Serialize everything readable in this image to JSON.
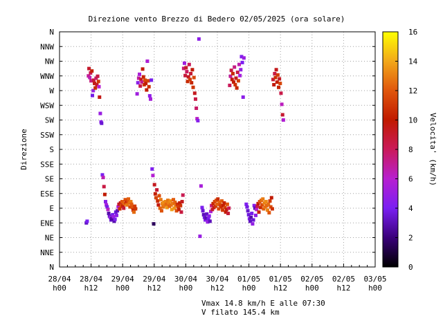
{
  "title": "Direzione vento Brezzo di Bedero 02/05/2025 (ora solare)",
  "footer": {
    "line1": "Vmax 14.8 km/h E alle 07:30",
    "line2": "V filato 145.4 km"
  },
  "chart_data": {
    "type": "scatter",
    "title": "Direzione vento Brezzo di Bedero 02/05/2025 (ora solare)",
    "ylabel": "Direzione",
    "colorbar_label": "Velocita' (km/h)",
    "colorbar_ticks": [
      0,
      2,
      4,
      6,
      8,
      10,
      12,
      14,
      16
    ],
    "colorbar_range": [
      0,
      16
    ],
    "grid": true,
    "xlim_hours": [
      0,
      120
    ],
    "x_ticks": [
      {
        "line1": "28/04",
        "line2": "h00"
      },
      {
        "line1": "28/04",
        "line2": "h12"
      },
      {
        "line1": "29/04",
        "line2": "h00"
      },
      {
        "line1": "29/04",
        "line2": "h12"
      },
      {
        "line1": "30/04",
        "line2": "h00"
      },
      {
        "line1": "30/04",
        "line2": "h12"
      },
      {
        "line1": "01/05",
        "line2": "h00"
      },
      {
        "line1": "01/05",
        "line2": "h12"
      },
      {
        "line1": "02/05",
        "line2": "h00"
      },
      {
        "line1": "02/05",
        "line2": "h12"
      },
      {
        "line1": "03/05",
        "line2": "h00"
      }
    ],
    "y_ticks": [
      "N",
      "NNE",
      "NE",
      "ENE",
      "E",
      "ESE",
      "SE",
      "SSE",
      "S",
      "SSW",
      "SW",
      "WSW",
      "W",
      "WNW",
      "NW",
      "NNW",
      "N"
    ],
    "points": [
      [
        10.2,
        67.5,
        3.2
      ],
      [
        10.5,
        70,
        4.0
      ],
      [
        11.0,
        292.5,
        7.0
      ],
      [
        11.2,
        303.75,
        9.0
      ],
      [
        11.5,
        290,
        6.5
      ],
      [
        11.8,
        297,
        8.2
      ],
      [
        12.0,
        285,
        7.4
      ],
      [
        12.3,
        300,
        10.2
      ],
      [
        12.5,
        262.5,
        3.8
      ],
      [
        12.8,
        270,
        5.0
      ],
      [
        13.0,
        286,
        8.8
      ],
      [
        13.3,
        281,
        9.6
      ],
      [
        13.6,
        274,
        10.5
      ],
      [
        13.9,
        289,
        7.8
      ],
      [
        14.2,
        279,
        9.2
      ],
      [
        14.5,
        292,
        8.5
      ],
      [
        14.8,
        284,
        11.0
      ],
      [
        15.0,
        276,
        6.0
      ],
      [
        15.2,
        260,
        9.5
      ],
      [
        15.5,
        235,
        5.0
      ],
      [
        15.8,
        222,
        4.5
      ],
      [
        16.0,
        220,
        3.5
      ],
      [
        16.3,
        141,
        4.0
      ],
      [
        16.6,
        137,
        6.5
      ],
      [
        16.9,
        123,
        8.5
      ],
      [
        17.2,
        111,
        10.0
      ],
      [
        17.5,
        100,
        4.5
      ],
      [
        17.8,
        95,
        5.5
      ],
      [
        18.1,
        92,
        3.8
      ],
      [
        18.4,
        88,
        6.2
      ],
      [
        18.7,
        82,
        2.8
      ],
      [
        19.0,
        78,
        3.2
      ],
      [
        19.3,
        76,
        4.8
      ],
      [
        19.6,
        72,
        3.4
      ],
      [
        19.9,
        74,
        2.6
      ],
      [
        20.2,
        80,
        3.9
      ],
      [
        20.5,
        77,
        5.1
      ],
      [
        20.8,
        70,
        2.9
      ],
      [
        21.1,
        73,
        4.2
      ],
      [
        21.4,
        84,
        3.6
      ],
      [
        21.7,
        79,
        4.6
      ],
      [
        22.0,
        86,
        3.1
      ],
      [
        22.3,
        92,
        5.8
      ],
      [
        22.6,
        96,
        9.0
      ],
      [
        22.9,
        89,
        10.8
      ],
      [
        23.2,
        98,
        9.6
      ],
      [
        23.5,
        94,
        11.5
      ],
      [
        23.8,
        100,
        12.0
      ],
      [
        24.1,
        93,
        10.2
      ],
      [
        24.4,
        90,
        8.8
      ],
      [
        24.7,
        97,
        12.4
      ],
      [
        25.0,
        103,
        11.8
      ],
      [
        25.3,
        99,
        10.6
      ],
      [
        25.6,
        95,
        12.8
      ],
      [
        25.9,
        101,
        11.2
      ],
      [
        26.2,
        104,
        12.2
      ],
      [
        26.5,
        98,
        12.6
      ],
      [
        26.8,
        92,
        11.4
      ],
      [
        27.1,
        100,
        12.9
      ],
      [
        27.4,
        96,
        12.1
      ],
      [
        27.7,
        91,
        11.9
      ],
      [
        28.0,
        87,
        10.4
      ],
      [
        28.3,
        84,
        12.5
      ],
      [
        28.6,
        93,
        11.1
      ],
      [
        28.9,
        89,
        10.9
      ],
      [
        29.5,
        265,
        5.2
      ],
      [
        29.8,
        282,
        4.6
      ],
      [
        30.1,
        289,
        6.8
      ],
      [
        30.4,
        295,
        5.6
      ],
      [
        30.7,
        277,
        8.4
      ],
      [
        31.0,
        287,
        9.4
      ],
      [
        31.3,
        283,
        7.2
      ],
      [
        31.6,
        303,
        9.8
      ],
      [
        31.9,
        291,
        10.3
      ],
      [
        32.2,
        279,
        10.9
      ],
      [
        32.5,
        286,
        11.6
      ],
      [
        32.8,
        281,
        9.9
      ],
      [
        33.1,
        271,
        10.1
      ],
      [
        33.4,
        315,
        5.7
      ],
      [
        33.7,
        285,
        11.3
      ],
      [
        34.0,
        276,
        10.7
      ],
      [
        34.3,
        262,
        4.7
      ],
      [
        34.6,
        257,
        5.4
      ],
      [
        34.9,
        286,
        3.9
      ],
      [
        35.2,
        150,
        4.2
      ],
      [
        35.5,
        140,
        5.9
      ],
      [
        35.8,
        66,
        1.5
      ],
      [
        36.1,
        126,
        9.3
      ],
      [
        36.4,
        112,
        10.1
      ],
      [
        36.7,
        106,
        11.4
      ],
      [
        37.0,
        118,
        8.9
      ],
      [
        37.3,
        101,
        10.6
      ],
      [
        37.6,
        95,
        9.7
      ],
      [
        37.9,
        109,
        11.7
      ],
      [
        38.2,
        90,
        12.3
      ],
      [
        38.5,
        103,
        12.8
      ],
      [
        38.8,
        86,
        11.9
      ],
      [
        39.1,
        97,
        13.1
      ],
      [
        39.4,
        92,
        12.6
      ],
      [
        39.7,
        99,
        13.4
      ],
      [
        40.0,
        94,
        12.9
      ],
      [
        40.3,
        100,
        13.2
      ],
      [
        40.6,
        96,
        12.4
      ],
      [
        40.9,
        91,
        13.6
      ],
      [
        41.2,
        102,
        12.7
      ],
      [
        41.5,
        98,
        13.0
      ],
      [
        41.8,
        93,
        12.2
      ],
      [
        42.1,
        101,
        13.3
      ],
      [
        42.4,
        95,
        12.5
      ],
      [
        42.7,
        88,
        13.8
      ],
      [
        43.0,
        97,
        12.8
      ],
      [
        43.3,
        103,
        12.1
      ],
      [
        43.6,
        90,
        13.5
      ],
      [
        43.9,
        99,
        12.3
      ],
      [
        44.2,
        94,
        12.9
      ],
      [
        44.5,
        86,
        11.8
      ],
      [
        44.8,
        96,
        10.7
      ],
      [
        45.1,
        92,
        11.2
      ],
      [
        45.4,
        88,
        10.3
      ],
      [
        45.7,
        98,
        9.9
      ],
      [
        46.0,
        94,
        10.8
      ],
      [
        46.3,
        84,
        8.6
      ],
      [
        46.6,
        100,
        9.4
      ],
      [
        46.9,
        110,
        8.2
      ],
      [
        47.2,
        304,
        7.6
      ],
      [
        47.5,
        312,
        5.1
      ],
      [
        47.8,
        293,
        8.7
      ],
      [
        48.1,
        305,
        9.1
      ],
      [
        48.4,
        299,
        7.9
      ],
      [
        48.7,
        284,
        10.5
      ],
      [
        49.0,
        291,
        9.2
      ],
      [
        49.3,
        310,
        8.1
      ],
      [
        49.6,
        287,
        11.1
      ],
      [
        49.9,
        296,
        8.9
      ],
      [
        50.2,
        282,
        10.4
      ],
      [
        50.5,
        302,
        9.8
      ],
      [
        50.8,
        275,
        10.9
      ],
      [
        51.1,
        290,
        11.5
      ],
      [
        51.4,
        266,
        9.3
      ],
      [
        51.7,
        257,
        8.5
      ],
      [
        52.0,
        243,
        7.8
      ],
      [
        52.3,
        227,
        6.2
      ],
      [
        52.6,
        224,
        4.4
      ],
      [
        53.0,
        349,
        4.6
      ],
      [
        53.4,
        47,
        5.0
      ],
      [
        53.8,
        124,
        5.5
      ],
      [
        54.2,
        91,
        4.1
      ],
      [
        54.5,
        86,
        3.5
      ],
      [
        54.8,
        80,
        3.0
      ],
      [
        55.1,
        76,
        3.7
      ],
      [
        55.4,
        72,
        4.3
      ],
      [
        55.7,
        75,
        2.9
      ],
      [
        56.0,
        81,
        3.3
      ],
      [
        56.3,
        69,
        4.9
      ],
      [
        56.6,
        74,
        3.9
      ],
      [
        56.9,
        78,
        4.4
      ],
      [
        57.2,
        70,
        3.1
      ],
      [
        57.5,
        85,
        5.6
      ],
      [
        57.8,
        94,
        7.4
      ],
      [
        58.1,
        88,
        8.9
      ],
      [
        58.4,
        97,
        10.4
      ],
      [
        58.7,
        91,
        9.5
      ],
      [
        59.0,
        100,
        11.3
      ],
      [
        59.3,
        93,
        10.9
      ],
      [
        59.6,
        102,
        11.8
      ],
      [
        59.9,
        96,
        12.2
      ],
      [
        60.2,
        104,
        10.6
      ],
      [
        60.5,
        89,
        11.6
      ],
      [
        60.8,
        99,
        12.3
      ],
      [
        61.1,
        95,
        11.4
      ],
      [
        61.4,
        92,
        10.8
      ],
      [
        61.7,
        101,
        12.1
      ],
      [
        62.0,
        87,
        11.0
      ],
      [
        62.3,
        94,
        9.9
      ],
      [
        62.6,
        98,
        10.3
      ],
      [
        62.9,
        91,
        11.5
      ],
      [
        63.2,
        84,
        10.1
      ],
      [
        63.5,
        88,
        9.6
      ],
      [
        63.8,
        96,
        12.0
      ],
      [
        64.1,
        82,
        8.8
      ],
      [
        64.4,
        90,
        8.2
      ],
      [
        64.7,
        278,
        8.0
      ],
      [
        65.0,
        292,
        6.9
      ],
      [
        65.3,
        301,
        8.6
      ],
      [
        65.6,
        287,
        9.7
      ],
      [
        65.9,
        296,
        10.6
      ],
      [
        66.2,
        283,
        10.0
      ],
      [
        66.5,
        306,
        7.3
      ],
      [
        66.8,
        279,
        10.8
      ],
      [
        67.1,
        289,
        9.3
      ],
      [
        67.4,
        274,
        10.4
      ],
      [
        67.7,
        298,
        8.4
      ],
      [
        68.0,
        285,
        11.2
      ],
      [
        68.3,
        310,
        6.6
      ],
      [
        68.6,
        293,
        5.4
      ],
      [
        68.9,
        302,
        4.9
      ],
      [
        69.2,
        322,
        4.3
      ],
      [
        69.5,
        313,
        4.1
      ],
      [
        69.8,
        260,
        4.6
      ],
      [
        70.1,
        320,
        5.0
      ],
      [
        71.0,
        96,
        4.2
      ],
      [
        71.3,
        92,
        3.8
      ],
      [
        71.6,
        86,
        3.4
      ],
      [
        71.9,
        80,
        3.6
      ],
      [
        72.2,
        74,
        4.4
      ],
      [
        72.5,
        70,
        3.2
      ],
      [
        72.8,
        76,
        2.8
      ],
      [
        73.1,
        82,
        3.9
      ],
      [
        73.4,
        66,
        4.8
      ],
      [
        73.7,
        72,
        3.5
      ],
      [
        74.0,
        94,
        4.5
      ],
      [
        74.3,
        90,
        3.0
      ],
      [
        74.6,
        79,
        4.7
      ],
      [
        74.9,
        88,
        6.1
      ],
      [
        75.2,
        93,
        8.3
      ],
      [
        75.5,
        97,
        9.9
      ],
      [
        75.8,
        84,
        10.2
      ],
      [
        76.1,
        100,
        11.7
      ],
      [
        76.4,
        91,
        10.5
      ],
      [
        76.7,
        102,
        12.4
      ],
      [
        77.0,
        95,
        11.6
      ],
      [
        77.3,
        104,
        12.9
      ],
      [
        77.6,
        89,
        12.2
      ],
      [
        77.9,
        98,
        13.0
      ],
      [
        78.2,
        92,
        12.7
      ],
      [
        78.5,
        100,
        13.3
      ],
      [
        78.8,
        94,
        12.4
      ],
      [
        79.1,
        87,
        13.1
      ],
      [
        79.4,
        96,
        12.6
      ],
      [
        79.7,
        83,
        12.0
      ],
      [
        80.0,
        101,
        11.2
      ],
      [
        80.3,
        92,
        11.7
      ],
      [
        80.6,
        106,
        9.9
      ],
      [
        80.9,
        89,
        10.8
      ],
      [
        81.2,
        287,
        8.9
      ],
      [
        81.5,
        279,
        9.8
      ],
      [
        81.8,
        296,
        8.5
      ],
      [
        82.1,
        290,
        10.7
      ],
      [
        82.4,
        302,
        9.4
      ],
      [
        82.7,
        283,
        10.1
      ],
      [
        83.0,
        294,
        11.1
      ],
      [
        83.3,
        275,
        10.3
      ],
      [
        83.6,
        288,
        9.2
      ],
      [
        83.9,
        281,
        11.4
      ],
      [
        84.2,
        266,
        8.4
      ],
      [
        84.5,
        249,
        6.3
      ],
      [
        84.8,
        233,
        8.9
      ],
      [
        85.1,
        225,
        5.8
      ]
    ]
  }
}
